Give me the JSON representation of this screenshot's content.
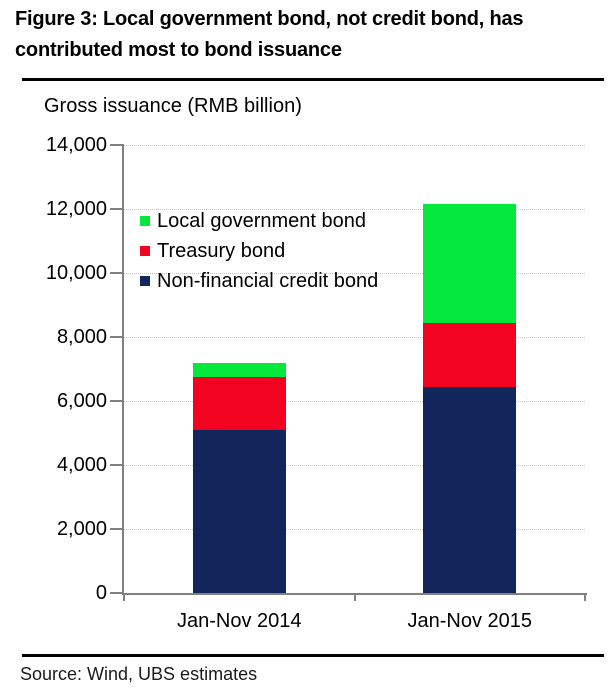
{
  "page": {
    "title_line1": "Figure 3: Local government bond, not credit bond, has",
    "title_line2": "contributed most to bond issuance",
    "source": "Source: Wind, UBS estimates"
  },
  "chart_data": {
    "type": "bar",
    "stacked": true,
    "axis_title": "Gross issuance (RMB billion)",
    "categories": [
      "Jan-Nov 2014",
      "Jan-Nov 2015"
    ],
    "series": [
      {
        "name": "Non-financial credit bond",
        "color": "#12265C",
        "values": [
          5100,
          6450
        ]
      },
      {
        "name": "Treasury bond",
        "color": "#F2031F",
        "values": [
          1650,
          2000
        ]
      },
      {
        "name": "Local government bond",
        "color": "#04E73C",
        "values": [
          450,
          3700
        ]
      }
    ],
    "stack_totals": [
      7200,
      12150
    ],
    "ylim": [
      0,
      14000
    ],
    "ytick_step": 2000,
    "ytick_labels": [
      "0",
      "2,000",
      "4,000",
      "6,000",
      "8,000",
      "10,000",
      "12,000",
      "14,000"
    ],
    "grid": "horizontal-dotted",
    "legend_position": "inside-top-left",
    "legend_order_top_to_bottom": [
      "Local government bond",
      "Treasury bond",
      "Non-financial credit bond"
    ]
  },
  "style_colors": {
    "axis_gray": "#818181",
    "gridline_gray": "#c6c6c6",
    "divider_black": "#000000"
  }
}
